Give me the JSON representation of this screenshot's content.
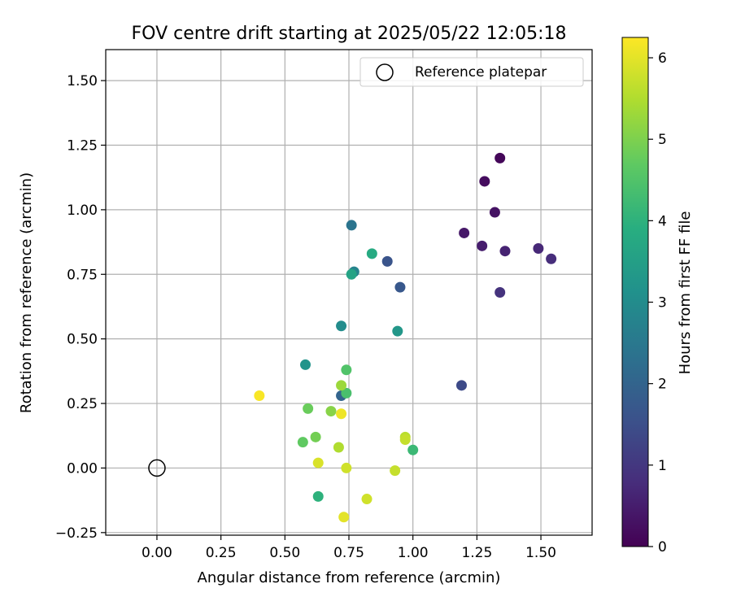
{
  "chart_data": {
    "type": "scatter",
    "title": "FOV centre drift starting at 2025/05/22 12:05:18",
    "xlabel": "Angular distance from reference (arcmin)",
    "ylabel": "Rotation from reference (arcmin)",
    "xlim": [
      -0.2,
      1.7
    ],
    "ylim": [
      -0.26,
      1.62
    ],
    "xticks": [
      0.0,
      0.25,
      0.5,
      0.75,
      1.0,
      1.25,
      1.5
    ],
    "xtick_labels": [
      "0.00",
      "0.25",
      "0.50",
      "0.75",
      "1.00",
      "1.25",
      "1.50"
    ],
    "yticks": [
      -0.25,
      0.0,
      0.25,
      0.5,
      0.75,
      1.0,
      1.25,
      1.5
    ],
    "ytick_labels": [
      "−0.25",
      "0.00",
      "0.25",
      "0.50",
      "0.75",
      "1.00",
      "1.25",
      "1.50"
    ],
    "grid": true,
    "legend": {
      "placement": "top-right",
      "label": "Reference platepar"
    },
    "reference_point": {
      "x": 0.0,
      "y": 0.0
    },
    "colorbar": {
      "label": "Hours from first FF file",
      "min": 0,
      "max": 6.25,
      "ticks": [
        0,
        1,
        2,
        3,
        4,
        5,
        6
      ],
      "tick_labels": [
        "0",
        "1",
        "2",
        "3",
        "4",
        "5",
        "6"
      ],
      "colormap": "viridis"
    },
    "points": [
      {
        "x": 1.34,
        "y": 1.2,
        "hours": 0.1
      },
      {
        "x": 1.28,
        "y": 1.11,
        "hours": 0.2
      },
      {
        "x": 1.32,
        "y": 0.99,
        "hours": 0.3
      },
      {
        "x": 1.2,
        "y": 0.91,
        "hours": 0.4
      },
      {
        "x": 1.27,
        "y": 0.86,
        "hours": 0.5
      },
      {
        "x": 1.36,
        "y": 0.84,
        "hours": 0.6
      },
      {
        "x": 1.49,
        "y": 0.85,
        "hours": 0.7
      },
      {
        "x": 1.54,
        "y": 0.81,
        "hours": 0.8
      },
      {
        "x": 1.34,
        "y": 0.68,
        "hours": 0.9
      },
      {
        "x": 1.19,
        "y": 0.32,
        "hours": 1.4
      },
      {
        "x": 0.9,
        "y": 0.8,
        "hours": 1.6
      },
      {
        "x": 0.95,
        "y": 0.7,
        "hours": 1.7
      },
      {
        "x": 0.72,
        "y": 0.28,
        "hours": 2.0
      },
      {
        "x": 0.76,
        "y": 0.94,
        "hours": 2.4
      },
      {
        "x": 0.77,
        "y": 0.76,
        "hours": 2.8
      },
      {
        "x": 0.72,
        "y": 0.55,
        "hours": 3.0
      },
      {
        "x": 0.58,
        "y": 0.4,
        "hours": 3.2
      },
      {
        "x": 0.94,
        "y": 0.53,
        "hours": 3.3
      },
      {
        "x": 0.76,
        "y": 0.75,
        "hours": 3.6
      },
      {
        "x": 0.84,
        "y": 0.83,
        "hours": 3.8
      },
      {
        "x": 0.63,
        "y": -0.11,
        "hours": 4.0
      },
      {
        "x": 1.0,
        "y": 0.07,
        "hours": 4.2
      },
      {
        "x": 0.74,
        "y": 0.29,
        "hours": 4.4
      },
      {
        "x": 0.74,
        "y": 0.38,
        "hours": 4.5
      },
      {
        "x": 0.57,
        "y": 0.1,
        "hours": 4.7
      },
      {
        "x": 0.59,
        "y": 0.23,
        "hours": 4.8
      },
      {
        "x": 0.62,
        "y": 0.12,
        "hours": 4.9
      },
      {
        "x": 0.68,
        "y": 0.22,
        "hours": 5.1
      },
      {
        "x": 0.72,
        "y": 0.32,
        "hours": 5.3
      },
      {
        "x": 0.71,
        "y": 0.08,
        "hours": 5.5
      },
      {
        "x": 0.97,
        "y": 0.12,
        "hours": 5.6
      },
      {
        "x": 0.97,
        "y": 0.11,
        "hours": 5.7
      },
      {
        "x": 0.93,
        "y": -0.01,
        "hours": 5.7
      },
      {
        "x": 0.82,
        "y": -0.12,
        "hours": 5.8
      },
      {
        "x": 0.74,
        "y": 0.0,
        "hours": 5.8
      },
      {
        "x": 0.63,
        "y": 0.02,
        "hours": 5.9
      },
      {
        "x": 0.73,
        "y": -0.19,
        "hours": 6.0
      },
      {
        "x": 0.72,
        "y": 0.21,
        "hours": 6.1
      },
      {
        "x": 0.4,
        "y": 0.28,
        "hours": 6.2
      }
    ]
  }
}
